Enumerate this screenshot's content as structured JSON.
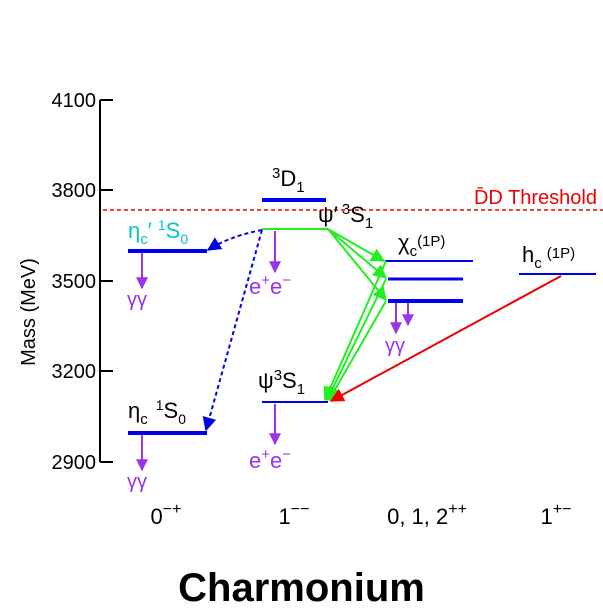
{
  "page_title": "Charmonium",
  "colors": {
    "level": "#0000ee",
    "threshold": "#ee0000",
    "decay_label": "#9933ee",
    "e1_transition": "#22ee22",
    "radiative": "#ee0000",
    "dashed_transition": "#0000ee",
    "eta_prime_label": "#00c8c8",
    "text": "#000000"
  },
  "axis": {
    "label": "Mass (MeV)",
    "ticks": [
      "4100",
      "3800",
      "3500",
      "3200",
      "2900"
    ],
    "ylim": [
      2900,
      4100
    ]
  },
  "threshold": {
    "label": "D̄D Threshold",
    "mass": 3730
  },
  "columns": [
    {
      "id": "pseudoscalar",
      "label": "0",
      "sup": "−+"
    },
    {
      "id": "vector",
      "label": "1",
      "sup": "−−"
    },
    {
      "id": "chi",
      "label": "0, 1, 2",
      "sup": "++"
    },
    {
      "id": "hc",
      "label": "1",
      "sup": "+−"
    }
  ],
  "states": {
    "eta_c": {
      "name": "η",
      "sub": "c",
      "term_sup": "1",
      "term": "S",
      "term_sub": "0",
      "mass": 2980,
      "decay": "γγ"
    },
    "eta_c_prime": {
      "name": "η",
      "sub": "c",
      "prime": "′",
      "term_sup": "1",
      "term": "S",
      "term_sub": "0",
      "mass": 3600,
      "decay": "γγ"
    },
    "jpsi": {
      "name": "ψ",
      "term_sup": "3",
      "term": "S",
      "term_sub": "1",
      "mass": 3097,
      "decay_base": "e",
      "decay_sup1": "+",
      "decay_mid": "e",
      "decay_sup2": "−"
    },
    "psi_prime": {
      "name": "ψ",
      "prime": "′",
      "term_sup": "3",
      "term": "S",
      "term_sub": "1",
      "mass": 3686,
      "decay_base": "e",
      "decay_sup1": "+",
      "decay_mid": "e",
      "decay_sup2": "−"
    },
    "d_wave": {
      "term_sup": "3",
      "term": "D",
      "term_sub": "1",
      "mass": 3770
    },
    "chi_c": {
      "name": "χ",
      "sub": "c",
      "extra": "(1P)",
      "masses": [
        3556,
        3511,
        3415
      ],
      "decay": "γγ"
    },
    "h_c": {
      "name": "h",
      "sub": "c",
      "extra": "(1P)",
      "mass": 3525
    }
  }
}
